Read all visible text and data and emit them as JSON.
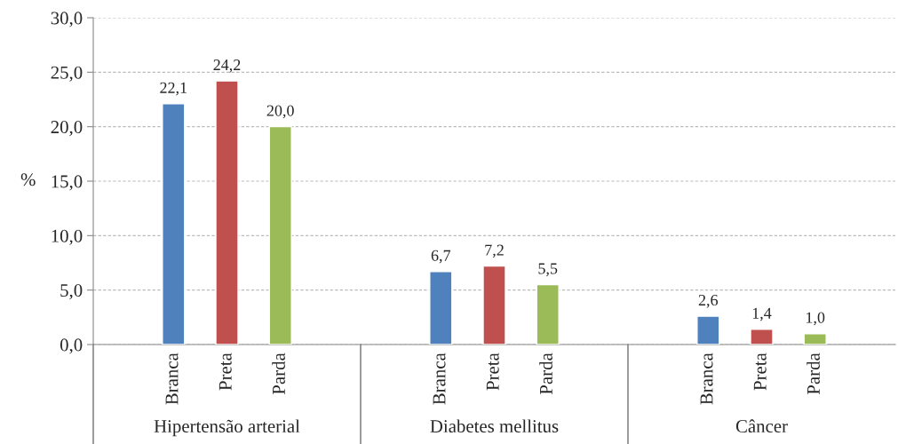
{
  "chart_data": {
    "type": "bar",
    "ylabel": "%",
    "categories": [
      "Hipertensão arterial",
      "Diabetes mellitus",
      "Câncer"
    ],
    "series": [
      {
        "name": "Branca",
        "color": "#4f81bd",
        "values": [
          22.1,
          6.7,
          2.6
        ],
        "value_labels": [
          "22,1",
          "6,7",
          "2,6"
        ]
      },
      {
        "name": "Preta",
        "color": "#c0504d",
        "values": [
          24.2,
          7.2,
          1.4
        ],
        "value_labels": [
          "24,2",
          "7,2",
          "1,4"
        ]
      },
      {
        "name": "Parda",
        "color": "#9bbb59",
        "values": [
          20.0,
          5.5,
          1.0
        ],
        "value_labels": [
          "20,0",
          "5,5",
          "1,0"
        ]
      }
    ],
    "ylim": [
      0,
      30
    ],
    "yticks": [
      {
        "value": 0,
        "label": "0,0"
      },
      {
        "value": 5,
        "label": "5,0"
      },
      {
        "value": 10,
        "label": "10,0"
      },
      {
        "value": 15,
        "label": "15,0"
      },
      {
        "value": 20,
        "label": "20,0"
      },
      {
        "value": 25,
        "label": "25,0"
      },
      {
        "value": 30,
        "label": "30,0"
      }
    ],
    "grid": "y",
    "legend": false
  }
}
